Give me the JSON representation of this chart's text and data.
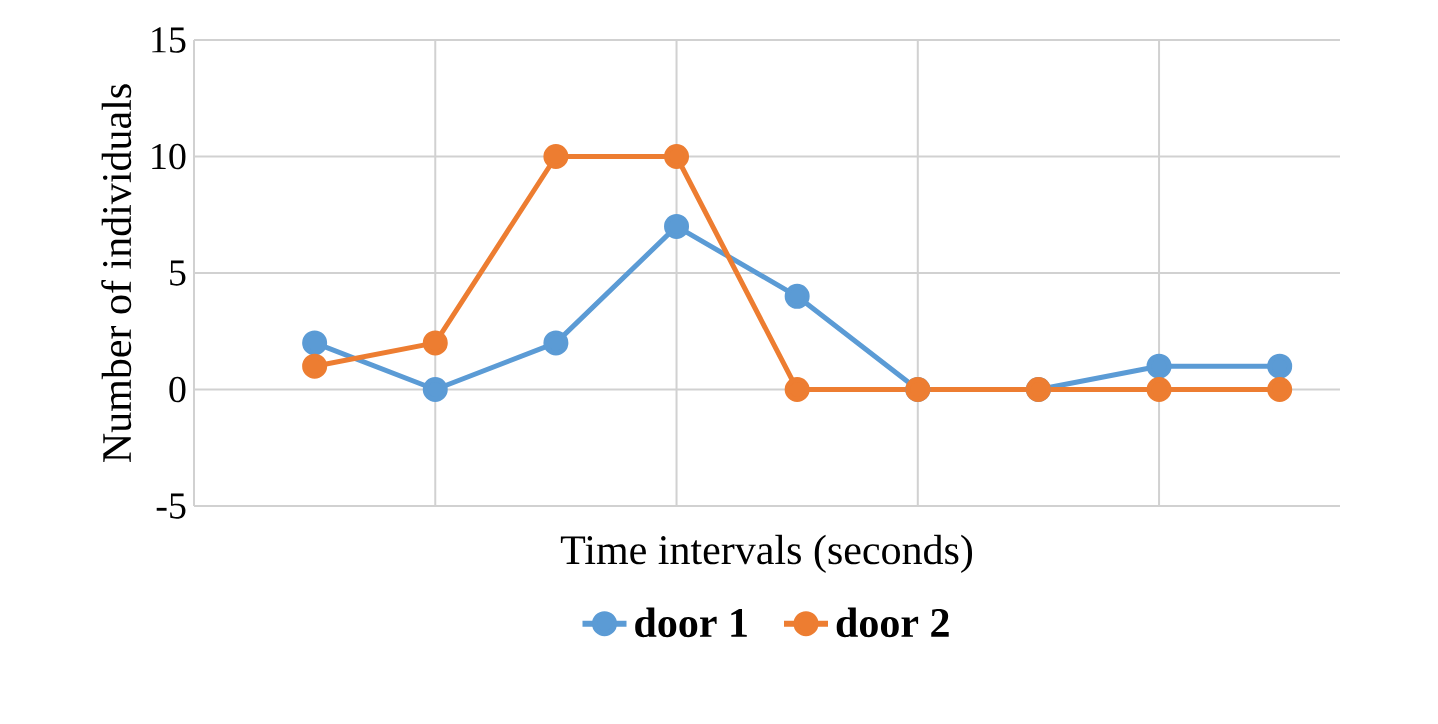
{
  "chart_data": {
    "type": "line",
    "xlabel": "Time intervals (seconds)",
    "ylabel": "Number of individuals",
    "categories": [
      null,
      null,
      null,
      null,
      null,
      null,
      null,
      null,
      null
    ],
    "series": [
      {
        "name": "door 1",
        "color": "#5b9bd5",
        "values": [
          2,
          0,
          2,
          7,
          4,
          0,
          0,
          1,
          1
        ]
      },
      {
        "name": "door 2",
        "color": "#ed7d31",
        "values": [
          1,
          2,
          10,
          10,
          0,
          0,
          0,
          0,
          0
        ]
      }
    ],
    "ylim": [
      -5,
      15
    ],
    "yticks": [
      -5,
      0,
      5,
      10,
      15
    ],
    "tick_labels": "y",
    "grid": true,
    "legend": "bottom",
    "marker": "circle"
  }
}
